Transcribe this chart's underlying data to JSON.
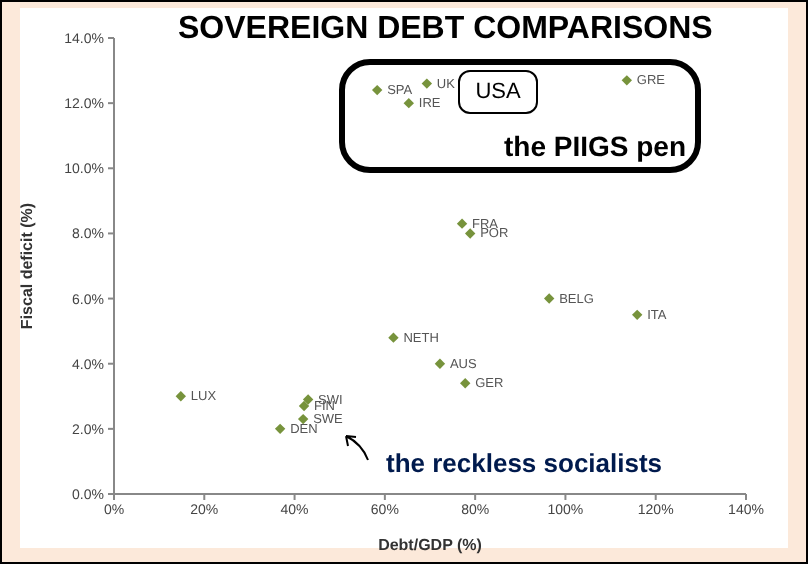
{
  "chart_data": {
    "type": "scatter",
    "title": "SOVEREIGN DEBT COMPARISONS",
    "xlabel": "Debt/GDP (%)",
    "ylabel": "Fiscal deficit (%)",
    "x": [
      58.3,
      69.3,
      65.3,
      113.6,
      77.1,
      78.9,
      96.4,
      115.9,
      61.9,
      72.2,
      77.8,
      14.8,
      43.0,
      42.1,
      41.9,
      36.8
    ],
    "values": [
      12.4,
      12.6,
      12.0,
      12.7,
      8.3,
      8.0,
      6.0,
      5.5,
      4.8,
      4.0,
      3.4,
      3.0,
      2.9,
      2.7,
      2.3,
      2.0
    ],
    "value_labels": [
      "SPA",
      "UK",
      "IRE",
      "GRE",
      "FRA",
      "POR",
      "BELG",
      "ITA",
      "NETH",
      "AUS",
      "GER",
      "LUX",
      "SWI",
      "FIN",
      "SWE",
      "DEN"
    ],
    "color": "#77933c",
    "marker": "diamond",
    "grid": false,
    "xlim": [
      0,
      140
    ],
    "xticks": [
      {
        "value": 0,
        "label": "0%"
      },
      {
        "value": 20,
        "label": "20%"
      },
      {
        "value": 40,
        "label": "40%"
      },
      {
        "value": 60,
        "label": "60%"
      },
      {
        "value": 80,
        "label": "80%"
      },
      {
        "value": 100,
        "label": "100%"
      },
      {
        "value": 120,
        "label": "120%"
      },
      {
        "value": 140,
        "label": "140%"
      }
    ],
    "ylim": [
      0,
      14
    ],
    "yticks": [
      {
        "value": 0,
        "label": "0.0%"
      },
      {
        "value": 2,
        "label": "2.0%"
      },
      {
        "value": 4,
        "label": "4.0%"
      },
      {
        "value": 6,
        "label": "6.0%"
      },
      {
        "value": 8,
        "label": "8.0%"
      },
      {
        "value": 10,
        "label": "10.0%"
      },
      {
        "value": 12,
        "label": "12.0%"
      },
      {
        "value": 14,
        "label": "14.0%"
      }
    ],
    "annotations": [
      "USA",
      "the PIIGS pen",
      "the reckless socialists"
    ]
  }
}
